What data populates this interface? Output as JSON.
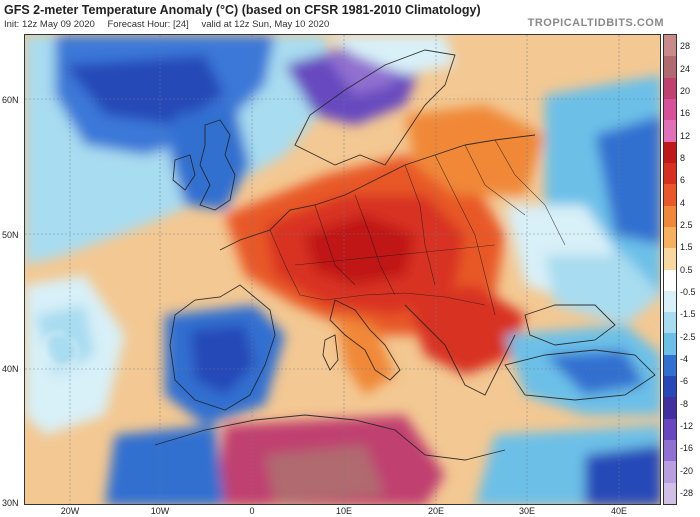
{
  "header": {
    "title": "GFS 2-meter Temperature Anomaly (°C) (based on CFSR 1981-2010 Climatology)",
    "init": "Init: 12z May 09 2020",
    "forecast": "Forecast Hour: [24]",
    "valid": "valid at 12z Sun, May 10 2020",
    "brand": "TROPICALTIDBITS.COM"
  },
  "latitude_labels": [
    "60N",
    "50N",
    "40N",
    "30N"
  ],
  "longitude_labels": [
    "20W",
    "10W",
    "0",
    "10E",
    "20E",
    "30E",
    "40E"
  ],
  "colorbar": {
    "ticks": [
      "28",
      "24",
      "20",
      "16",
      "12",
      "8",
      "6",
      "4",
      "2.5",
      "1.5",
      "0.5",
      "-0.5",
      "-1.5",
      "-2.5",
      "-4",
      "-6",
      "-8",
      "-12",
      "-16",
      "-20",
      "-28"
    ],
    "segment_colors": [
      "#c98a8a",
      "#b06a70",
      "#c04070",
      "#d8509a",
      "#e070b8",
      "#c01818",
      "#d83020",
      "#e85828",
      "#f08838",
      "#f5b060",
      "#f8d8a0",
      "#ffffff",
      "#d8f0f8",
      "#a8dcf0",
      "#6cc0e8",
      "#3070d0",
      "#2848b8",
      "#4030a0",
      "#6848c0",
      "#9070d0",
      "#b8a0e0",
      "#d0c0e8"
    ]
  },
  "colors": {
    "sea_warm": "#f3c892",
    "warm_anomaly": "#d83020",
    "cold_anomaly": "#2f5fc8",
    "neutral": "#ffffff"
  }
}
